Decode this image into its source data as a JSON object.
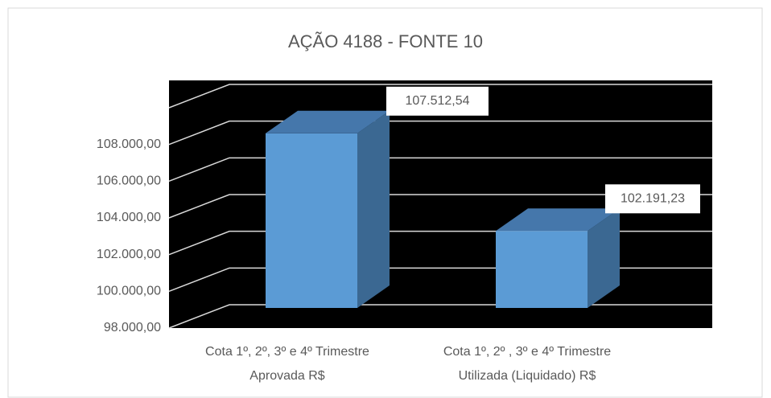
{
  "chart_data": {
    "type": "bar3d",
    "title": "AÇÃO 4188 - FONTE 10",
    "categories": [
      [
        "Cota 1º, 2º, 3º e 4º Trimestre",
        "Aprovada R$"
      ],
      [
        "Cota 1º, 2º , 3º e 4º Trimestre",
        "Utilizada (Liquidado) R$"
      ]
    ],
    "values": [
      107512.54,
      102191.23
    ],
    "value_labels": [
      "107.512,54",
      "102.191,23"
    ],
    "color": "#5b9bd5",
    "ylim": [
      98000,
      110000
    ],
    "yticks": [
      {
        "value": 98000,
        "label": "98.000,00"
      },
      {
        "value": 100000,
        "label": "100.000,00"
      },
      {
        "value": 102000,
        "label": "102.000,00"
      },
      {
        "value": 104000,
        "label": "104.000,00"
      },
      {
        "value": 106000,
        "label": "106.000,00"
      },
      {
        "value": 108000,
        "label": "108.000,00"
      }
    ],
    "grid": true
  }
}
